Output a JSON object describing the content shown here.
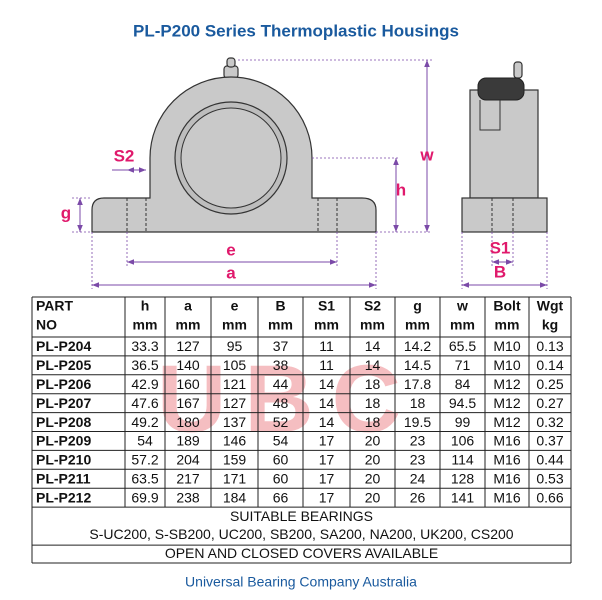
{
  "title": "PL-P200 Series Thermoplastic Housings",
  "diagram": {
    "labels": {
      "s2": "S2",
      "g": "g",
      "e": "e",
      "a": "a",
      "w": "w",
      "h": "h",
      "s1": "S1",
      "b": "B"
    }
  },
  "watermark": "UBC",
  "table": {
    "header": [
      [
        "PART",
        "NO"
      ],
      [
        "h",
        "mm"
      ],
      [
        "a",
        "mm"
      ],
      [
        "e",
        "mm"
      ],
      [
        "B",
        "mm"
      ],
      [
        "S1",
        "mm"
      ],
      [
        "S2",
        "mm"
      ],
      [
        "g",
        "mm"
      ],
      [
        "w",
        "mm"
      ],
      [
        "Bolt",
        "mm"
      ],
      [
        "Wgt",
        "kg"
      ]
    ],
    "rows": [
      [
        "PL-P204",
        "33.3",
        "127",
        "95",
        "37",
        "11",
        "14",
        "14.2",
        "65.5",
        "M10",
        "0.13"
      ],
      [
        "PL-P205",
        "36.5",
        "140",
        "105",
        "38",
        "11",
        "14",
        "14.5",
        "71",
        "M10",
        "0.14"
      ],
      [
        "PL-P206",
        "42.9",
        "160",
        "121",
        "44",
        "14",
        "18",
        "17.8",
        "84",
        "M12",
        "0.25"
      ],
      [
        "PL-P207",
        "47.6",
        "167",
        "127",
        "48",
        "14",
        "18",
        "18",
        "94.5",
        "M12",
        "0.27"
      ],
      [
        "PL-P208",
        "49.2",
        "180",
        "137",
        "52",
        "14",
        "18",
        "19.5",
        "99",
        "M12",
        "0.32"
      ],
      [
        "PL-P209",
        "54",
        "189",
        "146",
        "54",
        "17",
        "20",
        "23",
        "106",
        "M16",
        "0.37"
      ],
      [
        "PL-P210",
        "57.2",
        "204",
        "159",
        "60",
        "17",
        "20",
        "23",
        "114",
        "M16",
        "0.44"
      ],
      [
        "PL-P211",
        "63.5",
        "217",
        "171",
        "60",
        "17",
        "20",
        "24",
        "128",
        "M16",
        "0.53"
      ],
      [
        "PL-P212",
        "69.9",
        "238",
        "184",
        "66",
        "17",
        "20",
        "26",
        "141",
        "M16",
        "0.66"
      ]
    ],
    "notes": [
      "SUITABLE BEARINGS",
      "S-UC200, S-SB200, UC200, SB200, SA200, NA200, UK200, CS200",
      "OPEN AND CLOSED COVERS AVAILABLE"
    ]
  },
  "footer": "Universal Bearing Company Australia"
}
